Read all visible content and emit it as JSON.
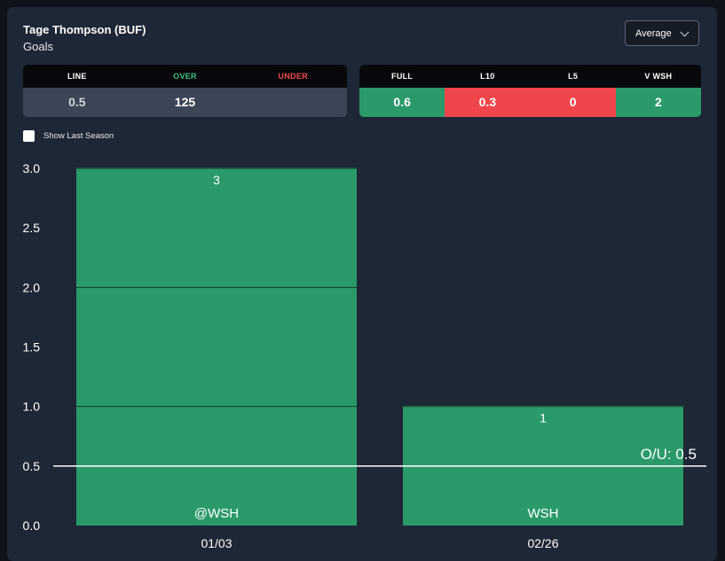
{
  "header": {
    "player": "Tage Thompson (BUF)",
    "stat": "Goals"
  },
  "dropdown": {
    "selected": "Average",
    "icon": "chevron-down-icon"
  },
  "line_table": {
    "headers": [
      "LINE",
      "OVER",
      "UNDER"
    ],
    "values": [
      "0.5",
      "125",
      ""
    ]
  },
  "split_table": {
    "headers": [
      "FULL",
      "L10",
      "L5",
      "V WSH"
    ],
    "values": [
      "0.6",
      "0.3",
      "0",
      "2"
    ],
    "status": [
      "over",
      "under",
      "under",
      "over"
    ]
  },
  "toggle": {
    "label": "Show Last Season",
    "checked": false
  },
  "colors": {
    "over": "#2b9a6a",
    "under": "#f0454a",
    "card": "#1e2736"
  },
  "chart_data": {
    "type": "bar",
    "categories": [
      "01/03",
      "02/26"
    ],
    "values": [
      3,
      1
    ],
    "opponents": [
      "@WSH",
      "WSH"
    ],
    "ylim": [
      0,
      3
    ],
    "yticks": [
      "0.0",
      "0.5",
      "1.0",
      "1.5",
      "2.0",
      "2.5",
      "3.0"
    ],
    "line": 0.5,
    "line_label": "O/U: 0.5",
    "bar_color": "#2b9a6a",
    "grid": false
  }
}
